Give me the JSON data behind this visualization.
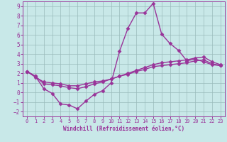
{
  "xlabel": "Windchill (Refroidissement éolien,°C)",
  "xlim": [
    -0.5,
    23.5
  ],
  "ylim": [
    -2.5,
    9.5
  ],
  "xticks": [
    0,
    1,
    2,
    3,
    4,
    5,
    6,
    7,
    8,
    9,
    10,
    11,
    12,
    13,
    14,
    15,
    16,
    17,
    18,
    19,
    20,
    21,
    22,
    23
  ],
  "yticks": [
    -2,
    -1,
    0,
    1,
    2,
    3,
    4,
    5,
    6,
    7,
    8,
    9
  ],
  "background_color": "#c8e8e8",
  "grid_color": "#99bbbb",
  "line_color": "#993399",
  "line_width": 1.0,
  "marker": "D",
  "marker_size": 2.5,
  "curves": [
    {
      "x": [
        0,
        1,
        2,
        3,
        4,
        5,
        6,
        7,
        8,
        9,
        10,
        11,
        12,
        13,
        14,
        15,
        16,
        17,
        18,
        19,
        20,
        21,
        22,
        23
      ],
      "y": [
        2.2,
        1.7,
        0.4,
        -0.1,
        -1.2,
        -1.3,
        -1.7,
        -0.9,
        -0.2,
        0.2,
        1.0,
        4.3,
        6.7,
        8.3,
        8.3,
        9.3,
        6.1,
        5.1,
        4.4,
        3.3,
        3.5,
        3.2,
        2.9,
        2.8
      ]
    },
    {
      "x": [
        0,
        1,
        2,
        3,
        4,
        5,
        6,
        7,
        8,
        9,
        10,
        11,
        12,
        13,
        14,
        15,
        16,
        17,
        18,
        19,
        20,
        21,
        22,
        23
      ],
      "y": [
        2.2,
        1.7,
        0.9,
        0.8,
        0.7,
        0.5,
        0.4,
        0.6,
        0.9,
        1.1,
        1.4,
        1.7,
        2.0,
        2.3,
        2.6,
        2.9,
        3.1,
        3.2,
        3.3,
        3.4,
        3.6,
        3.7,
        3.2,
        2.9
      ]
    },
    {
      "x": [
        0,
        1,
        2,
        3,
        4,
        5,
        6,
        7,
        8,
        9,
        10,
        11,
        12,
        13,
        14,
        15,
        16,
        17,
        18,
        19,
        20,
        21,
        22,
        23
      ],
      "y": [
        2.2,
        1.6,
        1.1,
        1.0,
        0.9,
        0.7,
        0.7,
        0.9,
        1.1,
        1.2,
        1.4,
        1.7,
        1.9,
        2.2,
        2.4,
        2.7,
        2.8,
        2.9,
        3.0,
        3.1,
        3.3,
        3.4,
        3.0,
        2.8
      ]
    }
  ]
}
